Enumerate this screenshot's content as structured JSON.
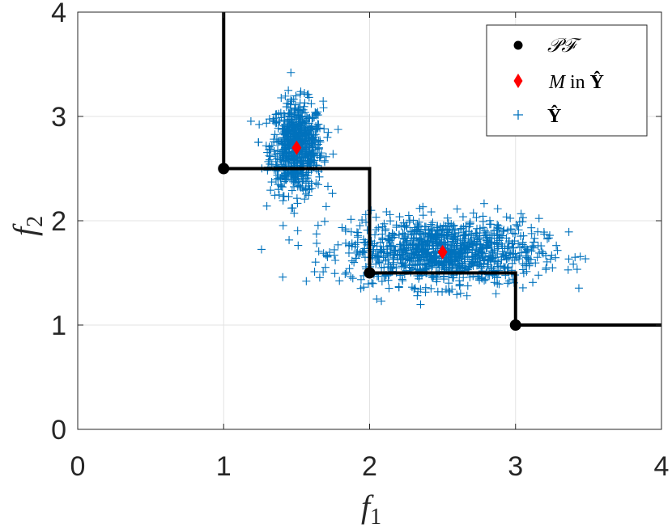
{
  "chart_data": {
    "type": "scatter",
    "xlabel": "f",
    "xlabel_sub": "1",
    "ylabel": "f",
    "ylabel_sub": "2",
    "xlim": [
      0,
      4
    ],
    "ylim": [
      0,
      4
    ],
    "xticks": [
      "0",
      "1",
      "2",
      "3",
      "4"
    ],
    "yticks": [
      "0",
      "1",
      "2",
      "3",
      "4"
    ],
    "grid": true,
    "legend_position": "top-right",
    "colors": {
      "pareto": "#000000",
      "mean": "#ff0000",
      "samples": "#0072bd"
    },
    "pareto_front": {
      "name": "𝒫ℱ",
      "points": [
        [
          1,
          2.5
        ],
        [
          2,
          1.5
        ],
        [
          3,
          1
        ]
      ],
      "step_line": [
        [
          1,
          4
        ],
        [
          1,
          2.5
        ],
        [
          2,
          2.5
        ],
        [
          2,
          1.5
        ],
        [
          3,
          1.5
        ],
        [
          3,
          1
        ],
        [
          4,
          1
        ]
      ]
    },
    "means": {
      "name_italic": "M",
      "name_rest": " in ",
      "name_bold": "Ŷ",
      "points": [
        [
          1.5,
          2.7
        ],
        [
          2.5,
          1.7
        ]
      ]
    },
    "samples": {
      "name": "Ŷ",
      "clusters": [
        {
          "center": [
            1.5,
            2.7
          ],
          "sd": [
            0.09,
            0.22
          ],
          "n": 700
        },
        {
          "center": [
            2.5,
            1.7
          ],
          "sd": [
            0.33,
            0.16
          ],
          "n": 1100
        }
      ]
    }
  }
}
